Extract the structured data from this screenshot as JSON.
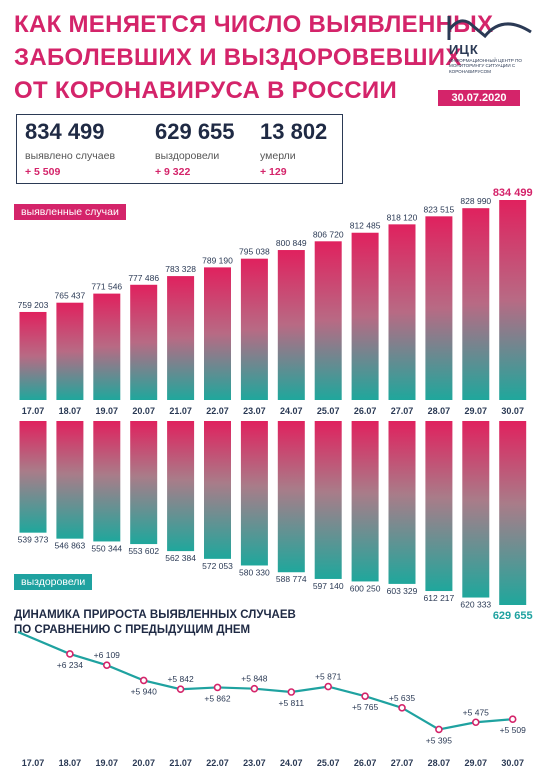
{
  "title_lines": [
    "КАК МЕНЯЕТСЯ ЧИСЛО ВЫЯВЛЕННЫХ",
    "ЗАБОЛЕВШИХ И ВЫЗДОРОВЕВШИХ",
    "ОТ КОРОНАВИРУСА В РОССИИ"
  ],
  "logo": {
    "name": "ИЦК",
    "subtitle": "ИНФОРМАЦИОННЫЙ ЦЕНТР ПО МОНИТОРИНГУ СИТУАЦИИ С КОРОНАВИРУСОМ",
    "icon": "mountain-line-logo"
  },
  "date": "30.07.2020",
  "summary": {
    "confirmed": {
      "value": "834 499",
      "label": "выявлено случаев",
      "delta": "+ 5 509"
    },
    "recovered": {
      "value": "629 655",
      "label": "выздоровели",
      "delta": "+ 9 322"
    },
    "deaths": {
      "value": "13 802",
      "label": "умерли",
      "delta": "+ 129"
    }
  },
  "tags": {
    "confirmed": "выявленные случаи",
    "recovered": "выздоровели"
  },
  "dynamics_title_lines": [
    "ДИНАМИКА ПРИРОСТА ВЫЯВЛЕННЫХ СЛУЧАЕВ",
    "ПО СРАВНЕНИЮ С ПРЕДЫДУЩИМ ДНЕМ"
  ],
  "colors": {
    "accent": "#d4246a",
    "teal": "#1fa2a0",
    "dark": "#2b3a55"
  },
  "chart_data": [
    {
      "type": "bar",
      "categories": [
        "17.07",
        "18.07",
        "19.07",
        "20.07",
        "21.07",
        "22.07",
        "23.07",
        "24.07",
        "25.07",
        "26.07",
        "27.07",
        "28.07",
        "29.07",
        "30.07"
      ],
      "series": [
        {
          "name": "выявленные случаи",
          "values": [
            759203,
            765437,
            771546,
            777486,
            783328,
            789190,
            795038,
            800849,
            806720,
            812485,
            818120,
            823515,
            828990,
            834499
          ],
          "labels": [
            "759 203",
            "765 437",
            "771 546",
            "777 486",
            "783 328",
            "789 190",
            "795 038",
            "800 849",
            "806 720",
            "812 485",
            "818 120",
            "823 515",
            "828 990",
            "834 499"
          ]
        }
      ]
    },
    {
      "type": "bar",
      "categories": [
        "17.07",
        "18.07",
        "19.07",
        "20.07",
        "21.07",
        "22.07",
        "23.07",
        "24.07",
        "25.07",
        "26.07",
        "27.07",
        "28.07",
        "29.07",
        "30.07"
      ],
      "series": [
        {
          "name": "выздоровели",
          "values": [
            539373,
            546863,
            550344,
            553602,
            562384,
            572053,
            580330,
            588774,
            597140,
            600250,
            603329,
            612217,
            620333,
            629655
          ],
          "labels": [
            "539 373",
            "546 863",
            "550 344",
            "553 602",
            "562 384",
            "572 053",
            "580 330",
            "588 774",
            "597 140",
            "600 250",
            "603 329",
            "612 217",
            "620 333",
            "629 655"
          ]
        }
      ]
    },
    {
      "type": "line",
      "categories": [
        "17.07",
        "18.07",
        "19.07",
        "20.07",
        "21.07",
        "22.07",
        "23.07",
        "24.07",
        "25.07",
        "26.07",
        "27.07",
        "28.07",
        "29.07",
        "30.07"
      ],
      "values": [
        null,
        6234,
        6109,
        5940,
        5842,
        5862,
        5848,
        5811,
        5871,
        5765,
        5635,
        5395,
        5475,
        5509
      ],
      "labels": [
        "",
        "+6 234",
        "+6 109",
        "+5 940",
        "+5 842",
        "+5 862",
        "+5 848",
        "+5 811",
        "+5 871",
        "+5 765",
        "+5 635",
        "+5 395",
        "+5 475",
        "+5 509"
      ]
    }
  ]
}
